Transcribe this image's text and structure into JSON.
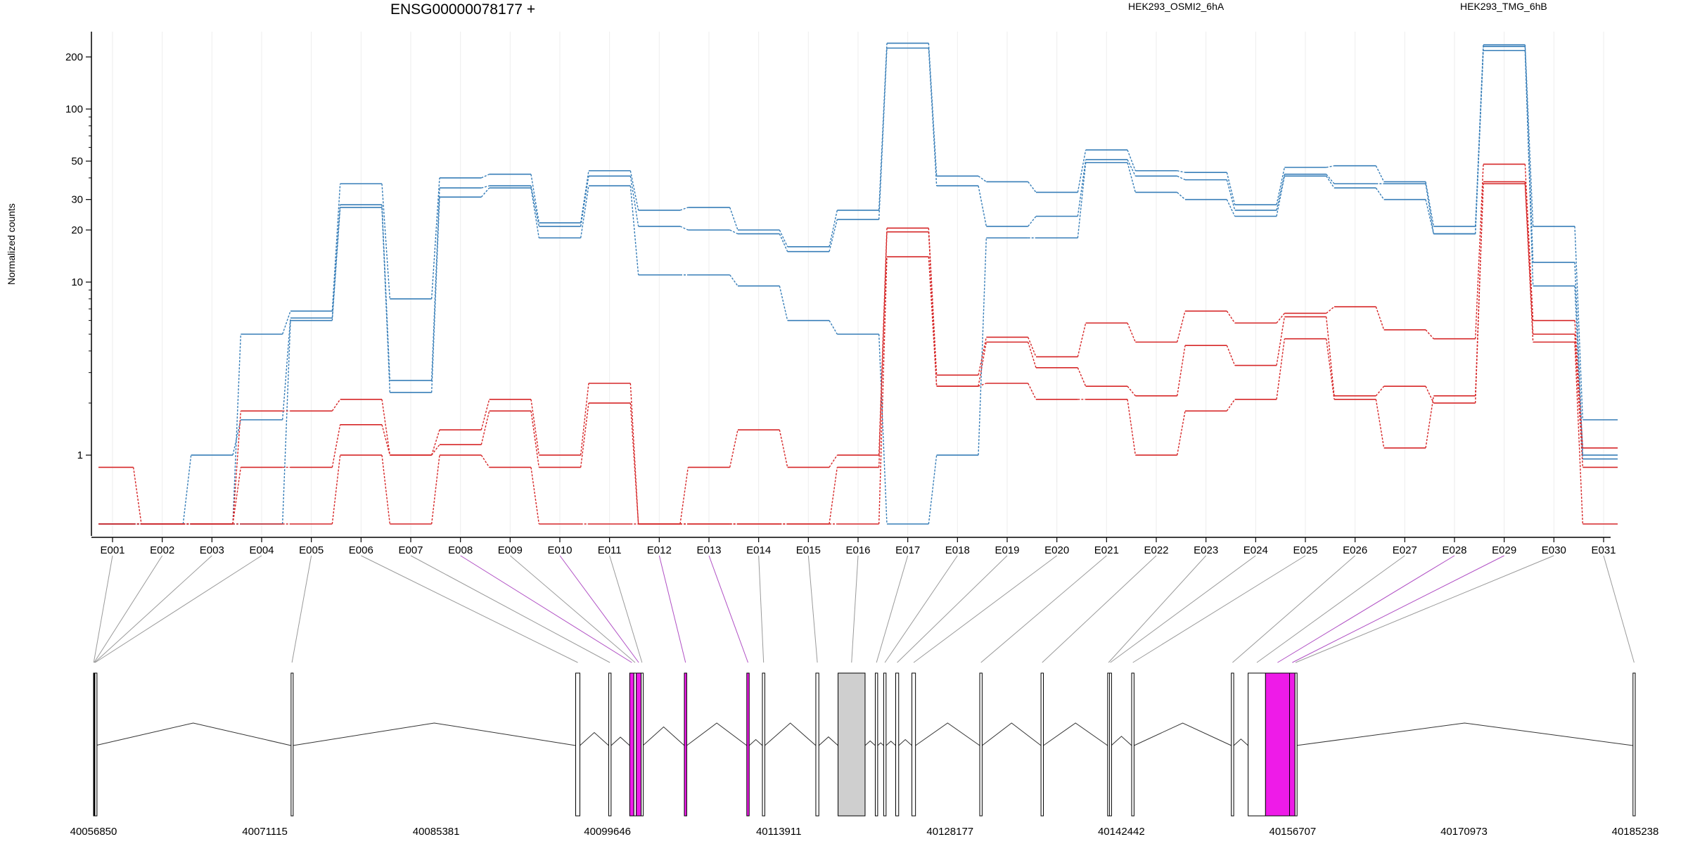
{
  "chart_data": {
    "type": "line",
    "title": "ENSG00000078177 +",
    "ylabel": "Normalized counts",
    "xlabel": "",
    "y_scale": "log",
    "ylim": [
      0.4,
      280
    ],
    "y_ticks": [
      1,
      10,
      20,
      30,
      50,
      100,
      200
    ],
    "y_tick_labels": [
      "1",
      "10",
      "20",
      "30",
      "50",
      "100",
      "200"
    ],
    "grid": "vertical-light",
    "legend_placement": "top",
    "categories": [
      "E001",
      "E002",
      "E003",
      "E004",
      "E005",
      "E006",
      "E007",
      "E008",
      "E009",
      "E010",
      "E011",
      "E012",
      "E013",
      "E014",
      "E015",
      "E016",
      "E017",
      "E018",
      "E019",
      "E020",
      "E021",
      "E022",
      "E023",
      "E024",
      "E025",
      "E026",
      "E027",
      "E028",
      "E029",
      "E030",
      "E031"
    ],
    "legend": [
      {
        "label": "HEK293_OSMI2_6hA",
        "color": "#d62728"
      },
      {
        "label": "HEK293_TMG_6hB",
        "color": "#377eb8"
      }
    ],
    "series": [
      {
        "group": 0,
        "color": "#377eb8",
        "values": [
          0.4,
          0.4,
          0.4,
          5,
          6.8,
          37,
          8,
          40,
          42,
          22,
          44,
          26,
          27,
          20,
          16,
          26,
          240,
          41,
          38,
          33,
          58,
          44,
          43,
          28,
          46,
          47,
          38,
          21,
          235,
          21,
          1.6
        ]
      },
      {
        "group": 0,
        "color": "#377eb8",
        "values": [
          0.4,
          0.4,
          1,
          1.6,
          6.2,
          28,
          2.7,
          35,
          36,
          21,
          41,
          21,
          20,
          19,
          15,
          23,
          225,
          36,
          21,
          24,
          51,
          41,
          39,
          26,
          42,
          37,
          37,
          19,
          230,
          13,
          1
        ]
      },
      {
        "group": 0,
        "color": "#377eb8",
        "values": [
          0.4,
          0.4,
          0.4,
          0.4,
          6,
          27,
          2.3,
          31,
          35,
          18,
          36,
          11,
          11,
          9.5,
          6,
          5,
          0.4,
          1,
          18,
          18,
          49,
          33,
          30,
          24,
          41,
          35,
          30,
          19,
          218,
          9.5,
          0.95
        ]
      },
      {
        "group": 1,
        "color": "#d62728",
        "values": [
          0.85,
          0.4,
          0.4,
          1.8,
          1.8,
          2.1,
          1,
          1.4,
          2.1,
          1,
          2.6,
          0.4,
          0.85,
          1.4,
          0.85,
          1,
          20.5,
          2.9,
          4.8,
          3.7,
          5.8,
          4.5,
          6.8,
          5.8,
          6.6,
          7.2,
          5.3,
          4.7,
          48,
          6,
          1.1
        ]
      },
      {
        "group": 1,
        "color": "#d62728",
        "values": [
          0.4,
          0.4,
          0.4,
          0.85,
          0.85,
          1.5,
          1,
          1.15,
          1.8,
          0.85,
          2,
          0.4,
          0.4,
          0.4,
          0.4,
          0.85,
          19.5,
          2.5,
          4.5,
          3.2,
          2.5,
          2.2,
          4.3,
          3.3,
          6.3,
          2.2,
          2.5,
          2,
          38,
          5,
          0.85
        ]
      },
      {
        "group": 1,
        "color": "#d62728",
        "values": [
          0.4,
          0.4,
          0.4,
          0.4,
          0.4,
          1,
          0.4,
          1,
          0.85,
          0.4,
          0.4,
          0.4,
          0.4,
          0.4,
          0.4,
          0.4,
          14,
          2.5,
          2.6,
          2.1,
          2.1,
          1,
          1.8,
          2.1,
          4.7,
          2.1,
          1.1,
          2.2,
          37,
          4.5,
          0.4
        ]
      }
    ],
    "genomic_axis": {
      "start": 40056850,
      "end": 40185238,
      "tick_labels": [
        "40056850",
        "40071115",
        "40085381",
        "40099646",
        "40113911",
        "40128177",
        "40142442",
        "40156707",
        "40170973",
        "40185238"
      ],
      "tick_positions": [
        40056850,
        40071115,
        40085381,
        40099646,
        40113911,
        40128177,
        40142442,
        40156707,
        40170973,
        40185238
      ]
    },
    "exons": [
      {
        "id": "E001",
        "start": 40056850,
        "end": 40056880,
        "highlight": false
      },
      {
        "id": "E002",
        "start": 40056880,
        "end": 40056920,
        "highlight": false
      },
      {
        "id": "E003",
        "start": 40056920,
        "end": 40056960,
        "highlight": false
      },
      {
        "id": "E004",
        "start": 40056960,
        "end": 40057000,
        "highlight": false
      },
      {
        "id": "E005",
        "start": 40073300,
        "end": 40073450,
        "highlight": false
      },
      {
        "id": "E006",
        "start": 40097000,
        "end": 40097350,
        "highlight": false
      },
      {
        "id": "E007",
        "start": 40099750,
        "end": 40099950,
        "highlight": false
      },
      {
        "id": "E008",
        "start": 40101500,
        "end": 40101850,
        "highlight": true
      },
      {
        "id": "E009",
        "start": 40101850,
        "end": 40102050,
        "highlight": false
      },
      {
        "id": "E010",
        "start": 40102050,
        "end": 40102450,
        "highlight": true
      },
      {
        "id": "E011",
        "start": 40102450,
        "end": 40102600,
        "highlight": false
      },
      {
        "id": "E012",
        "start": 40106050,
        "end": 40106250,
        "highlight": true
      },
      {
        "id": "E013",
        "start": 40111250,
        "end": 40111450,
        "highlight": true
      },
      {
        "id": "E014",
        "start": 40112550,
        "end": 40112750,
        "highlight": false
      },
      {
        "id": "E015",
        "start": 40117000,
        "end": 40117250,
        "highlight": false
      },
      {
        "id": "E016",
        "start": 40118850,
        "end": 40121100,
        "highlight": false,
        "shaded": true
      },
      {
        "id": "E017",
        "start": 40121950,
        "end": 40122150,
        "highlight": false
      },
      {
        "id": "E018",
        "start": 40122650,
        "end": 40122850,
        "highlight": false
      },
      {
        "id": "E019",
        "start": 40123650,
        "end": 40123900,
        "highlight": false
      },
      {
        "id": "E020",
        "start": 40125000,
        "end": 40125300,
        "highlight": false
      },
      {
        "id": "E021",
        "start": 40130650,
        "end": 40130850,
        "highlight": false
      },
      {
        "id": "E022",
        "start": 40135750,
        "end": 40135950,
        "highlight": false
      },
      {
        "id": "E023",
        "start": 40141300,
        "end": 40141450,
        "highlight": false
      },
      {
        "id": "E024",
        "start": 40141450,
        "end": 40141600,
        "highlight": false
      },
      {
        "id": "E025",
        "start": 40143300,
        "end": 40143500,
        "highlight": false
      },
      {
        "id": "E026",
        "start": 40151600,
        "end": 40151800,
        "highlight": false
      },
      {
        "id": "E027",
        "start": 40153000,
        "end": 40154450,
        "highlight": false
      },
      {
        "id": "E028",
        "start": 40154450,
        "end": 40156450,
        "highlight": true
      },
      {
        "id": "E029",
        "start": 40156450,
        "end": 40156900,
        "highlight": true
      },
      {
        "id": "E030",
        "start": 40156900,
        "end": 40157000,
        "highlight": false
      },
      {
        "id": "E031",
        "start": 40185050,
        "end": 40185238,
        "highlight": false
      }
    ]
  },
  "colors": {
    "group_a": "#d62728",
    "group_b": "#377eb8",
    "highlight_exon": "#ee1be8",
    "highlight_link": "#b04fc4",
    "shaded_exon": "#cfcfcf",
    "normal_link": "#9a9a9a"
  }
}
